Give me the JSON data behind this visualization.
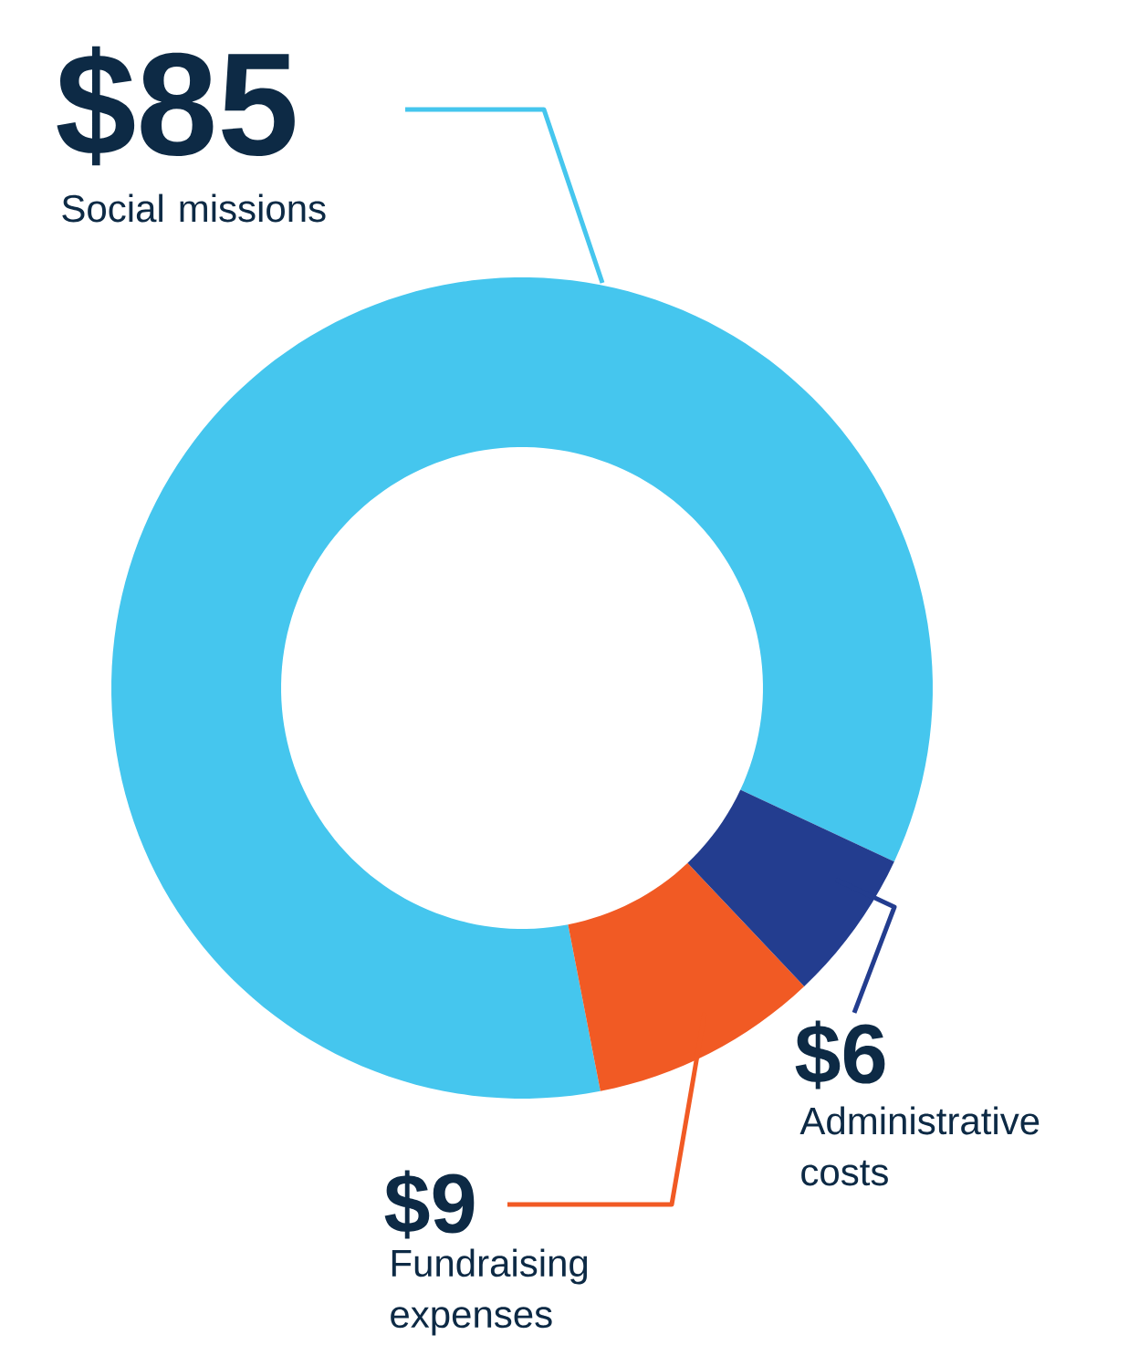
{
  "chart_data": {
    "type": "donut",
    "categories": [
      "Social missions",
      "Fundraising expenses",
      "Administrative costs"
    ],
    "values": [
      85,
      9,
      6
    ],
    "value_labels": [
      "$85",
      "$9",
      "$6"
    ],
    "colors": [
      "#45c6ee",
      "#f15a24",
      "#233d8f"
    ]
  }
}
